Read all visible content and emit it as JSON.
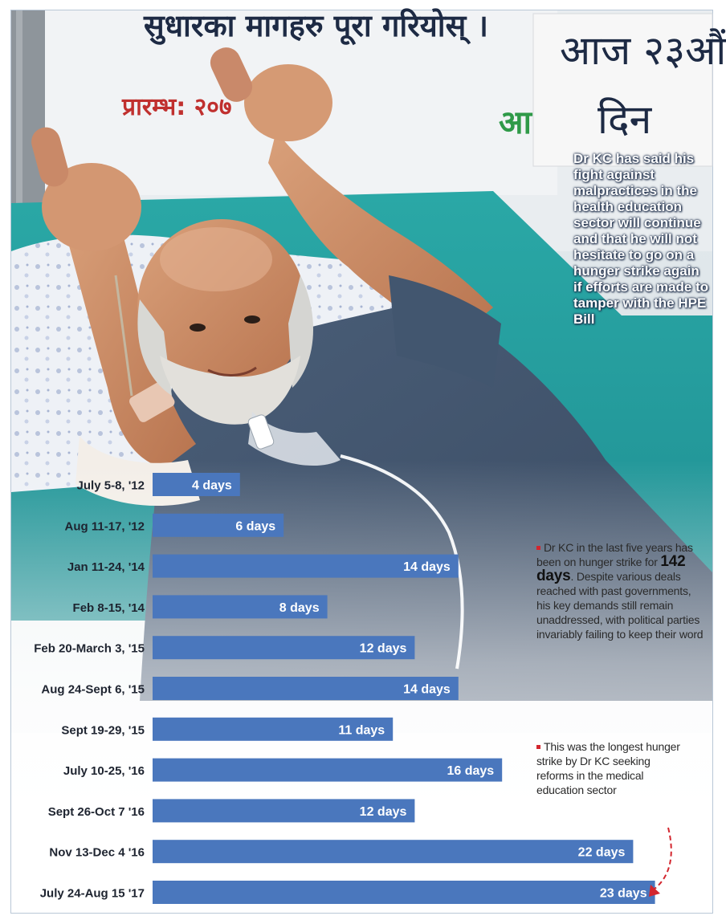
{
  "sign": {
    "top_line": "सुधारका मागहरु पूरा गरियोस् ।",
    "start_line": "प्रारम्भ: २०७",
    "right_line1": "आज २३औं",
    "right_line2": "दिन",
    "green_text": "आ"
  },
  "quote": {
    "text": "Dr KC has said his fight against malpractices in the health education sector will continue and that he will not hesitate to go on a hunger strike again if efforts are made to tamper with the HPE Bill"
  },
  "notes": [
    {
      "before": "Dr KC in the last five years has been on hunger strike for ",
      "highlight": "142 days",
      "after": ". Despite various deals reached with past governments, his key demands still remain unaddressed, with political parties invariably failing to keep their word"
    },
    {
      "before": "This was the longest hunger strike by Dr KC seeking reforms in the medical education sector",
      "highlight": "",
      "after": ""
    }
  ],
  "chart_data": {
    "type": "bar",
    "orientation": "horizontal",
    "categories": [
      "July 5-8, '12",
      "Aug 11-17, '12",
      "Jan 11-24, '14",
      "Feb 8-15, '14",
      "Feb 20-March 3, '15",
      "Aug 24-Sept 6, '15",
      "Sept 19-29, '15",
      "July 10-25, '16",
      "Sept 26-Oct 7 '16",
      "Nov 13-Dec 4 '16",
      "July 24-Aug 15 '17"
    ],
    "values": [
      4,
      6,
      14,
      8,
      12,
      14,
      11,
      16,
      12,
      22,
      23
    ],
    "labels": [
      "4 days",
      "6 days",
      "14 days",
      "8 days",
      "12 days",
      "14 days",
      "11 days",
      "16 days",
      "12 days",
      "22 days",
      "23 days"
    ],
    "title": "",
    "xlabel": "",
    "ylabel": "",
    "bar_color": "#4a77bd",
    "label_color": "#ffffff",
    "grid": false,
    "legend": "none",
    "highlight_category": "July 24-Aug 15 '17"
  }
}
